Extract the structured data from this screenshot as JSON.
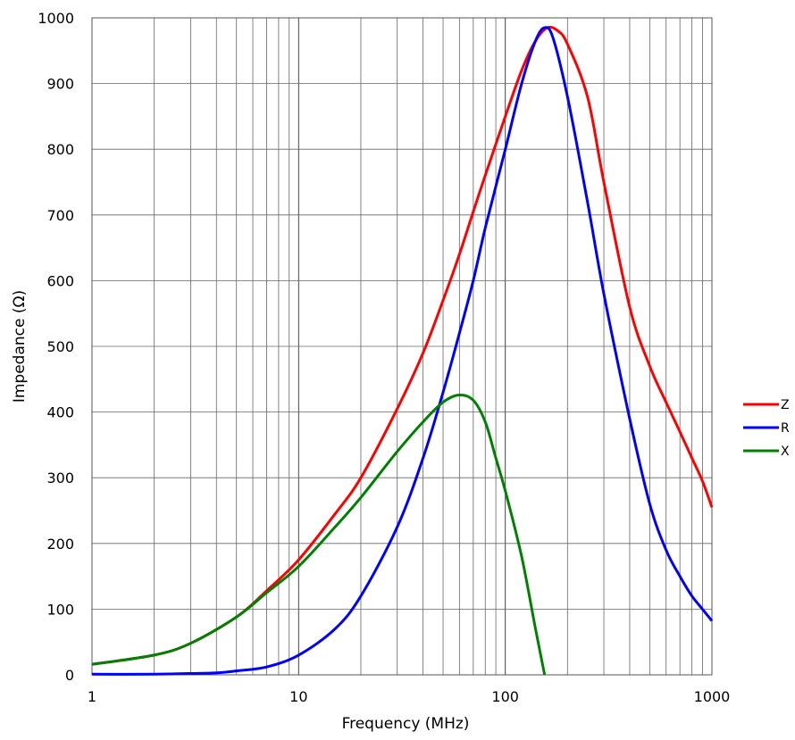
{
  "chart_data": {
    "type": "line",
    "x_scale": "log",
    "xlim": [
      1,
      1000
    ],
    "ylim": [
      0,
      1000
    ],
    "grid": true,
    "legend_position": "right",
    "xlabel": "Frequency (MHz)",
    "ylabel": "Impedance (Ω)",
    "x_major_ticks": [
      1,
      10,
      100,
      1000
    ],
    "x_tick_labels": [
      "1",
      "10",
      "100",
      "1000"
    ],
    "y_ticks": [
      0,
      100,
      200,
      300,
      400,
      500,
      600,
      700,
      800,
      900,
      1000
    ],
    "y_tick_labels": [
      "0",
      "100",
      "200",
      "300",
      "400",
      "500",
      "600",
      "700",
      "800",
      "900",
      "1000"
    ],
    "series": [
      {
        "name": "Z",
        "color": "#ff0000",
        "points": [
          [
            1,
            16
          ],
          [
            2,
            30
          ],
          [
            3,
            48
          ],
          [
            5,
            88
          ],
          [
            7,
            128
          ],
          [
            10,
            175
          ],
          [
            15,
            245
          ],
          [
            20,
            300
          ],
          [
            30,
            405
          ],
          [
            40,
            490
          ],
          [
            50,
            570
          ],
          [
            60,
            640
          ],
          [
            70,
            705
          ],
          [
            80,
            760
          ],
          [
            100,
            850
          ],
          [
            120,
            920
          ],
          [
            140,
            965
          ],
          [
            160,
            985
          ],
          [
            180,
            980
          ],
          [
            200,
            960
          ],
          [
            250,
            880
          ],
          [
            300,
            750
          ],
          [
            400,
            560
          ],
          [
            500,
            470
          ],
          [
            600,
            415
          ],
          [
            700,
            370
          ],
          [
            800,
            330
          ],
          [
            900,
            295
          ],
          [
            1000,
            255
          ]
        ]
      },
      {
        "name": "R",
        "color": "#0000ff",
        "points": [
          [
            1,
            1
          ],
          [
            2,
            1
          ],
          [
            3,
            2
          ],
          [
            4,
            3
          ],
          [
            5,
            6
          ],
          [
            7,
            12
          ],
          [
            10,
            30
          ],
          [
            15,
            70
          ],
          [
            20,
            120
          ],
          [
            30,
            225
          ],
          [
            40,
            330
          ],
          [
            50,
            430
          ],
          [
            60,
            520
          ],
          [
            70,
            600
          ],
          [
            80,
            680
          ],
          [
            100,
            800
          ],
          [
            120,
            900
          ],
          [
            140,
            965
          ],
          [
            155,
            985
          ],
          [
            170,
            970
          ],
          [
            200,
            880
          ],
          [
            250,
            720
          ],
          [
            300,
            580
          ],
          [
            400,
            390
          ],
          [
            500,
            260
          ],
          [
            600,
            190
          ],
          [
            700,
            150
          ],
          [
            800,
            120
          ],
          [
            900,
            100
          ],
          [
            1000,
            82
          ]
        ]
      },
      {
        "name": "X",
        "color": "#008000",
        "points": [
          [
            1,
            16
          ],
          [
            2,
            30
          ],
          [
            3,
            48
          ],
          [
            5,
            88
          ],
          [
            7,
            125
          ],
          [
            10,
            165
          ],
          [
            15,
            225
          ],
          [
            20,
            270
          ],
          [
            30,
            340
          ],
          [
            40,
            385
          ],
          [
            50,
            415
          ],
          [
            60,
            426
          ],
          [
            70,
            418
          ],
          [
            80,
            385
          ],
          [
            90,
            330
          ],
          [
            100,
            280
          ],
          [
            120,
            180
          ],
          [
            140,
            70
          ],
          [
            155,
            0
          ]
        ]
      }
    ]
  }
}
